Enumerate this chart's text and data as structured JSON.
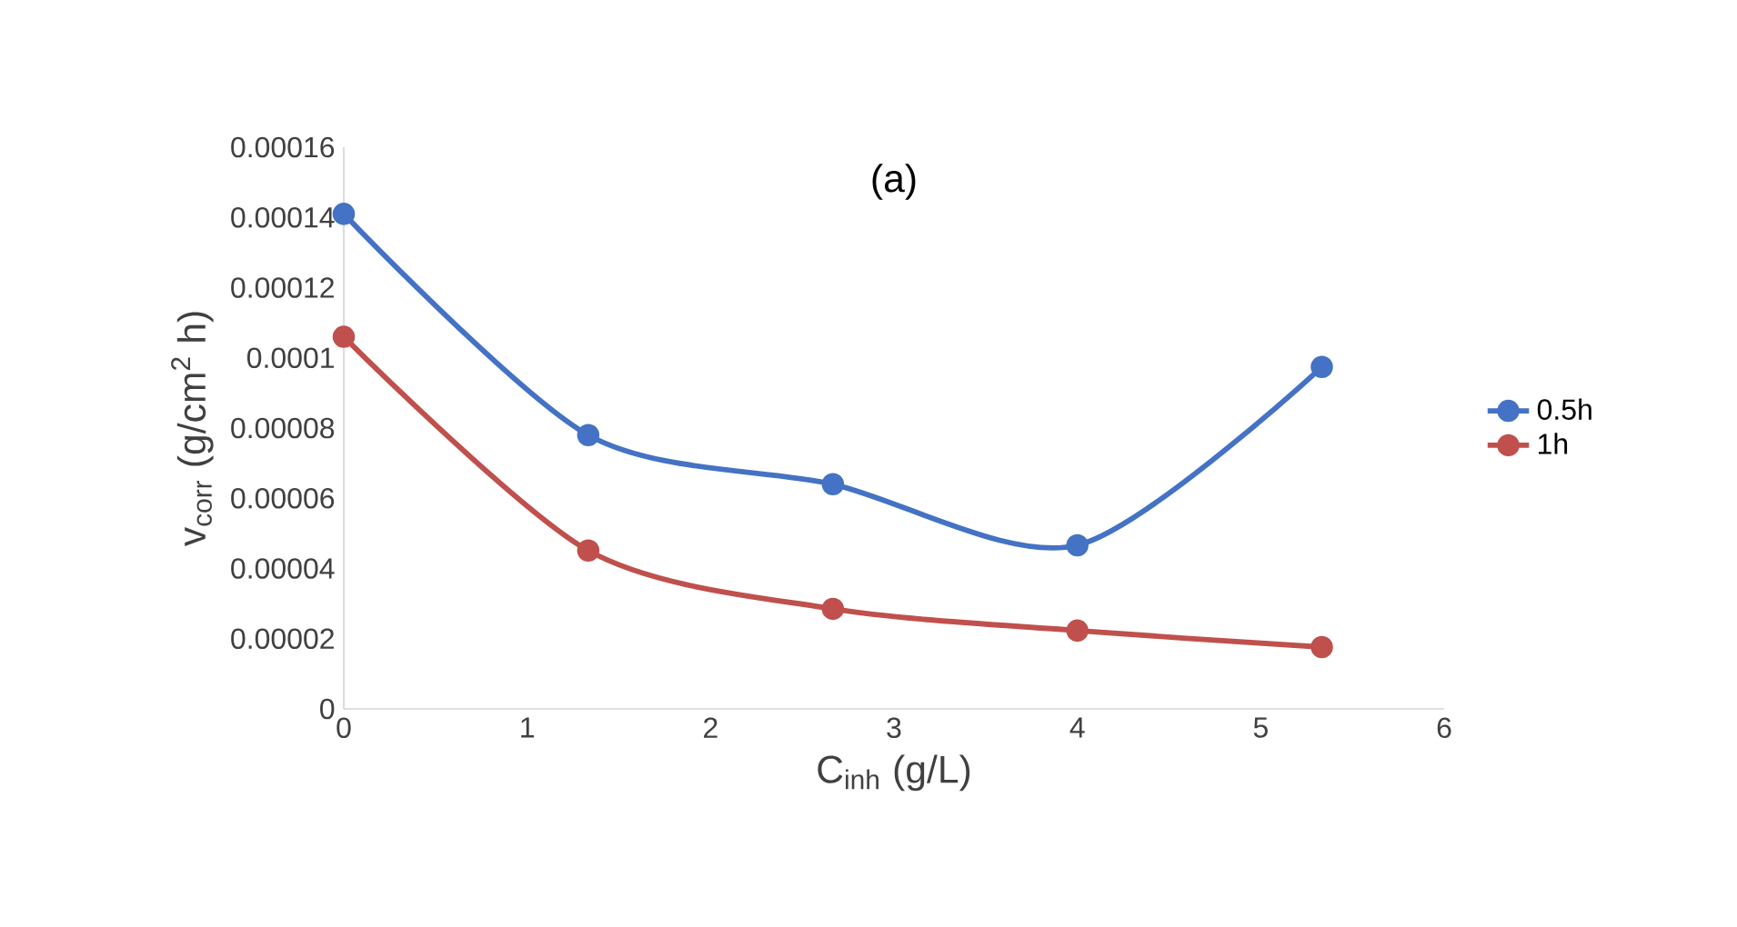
{
  "chart_data": {
    "type": "line",
    "title": "(a)",
    "xlabel": "C$_{inh}$ (g/L)",
    "ylabel": "v$_{corr}$ (g/cm$^{2}$ h)",
    "x": [
      0,
      1.333,
      2.667,
      4,
      5.333
    ],
    "series": [
      {
        "name": "0.5h",
        "color": "#4472c4",
        "values": [
          0.000141,
          7.8e-05,
          6.4e-05,
          4.66e-05,
          9.74e-05
        ]
      },
      {
        "name": "1h",
        "color": "#c0504d",
        "values": [
          0.000106,
          4.51e-05,
          2.85e-05,
          2.23e-05,
          1.76e-05
        ]
      }
    ],
    "xlim": [
      0,
      6
    ],
    "xticks": [
      0,
      1,
      2,
      3,
      4,
      5,
      6
    ],
    "ylim": [
      0,
      0.00016
    ],
    "yticks": [
      {
        "value": 0,
        "label": "0"
      },
      {
        "value": 2e-05,
        "label": "0.00002"
      },
      {
        "value": 4e-05,
        "label": "0.00004"
      },
      {
        "value": 6e-05,
        "label": "0.00006"
      },
      {
        "value": 8e-05,
        "label": "0.00008"
      },
      {
        "value": 0.0001,
        "label": "0.0001"
      },
      {
        "value": 0.00012,
        "label": "0.00012"
      },
      {
        "value": 0.00014,
        "label": "0.00014"
      },
      {
        "value": 0.00016,
        "label": "0.00016"
      }
    ],
    "grid": false,
    "legend": "right",
    "marker": "circle",
    "line_style": "solid"
  }
}
